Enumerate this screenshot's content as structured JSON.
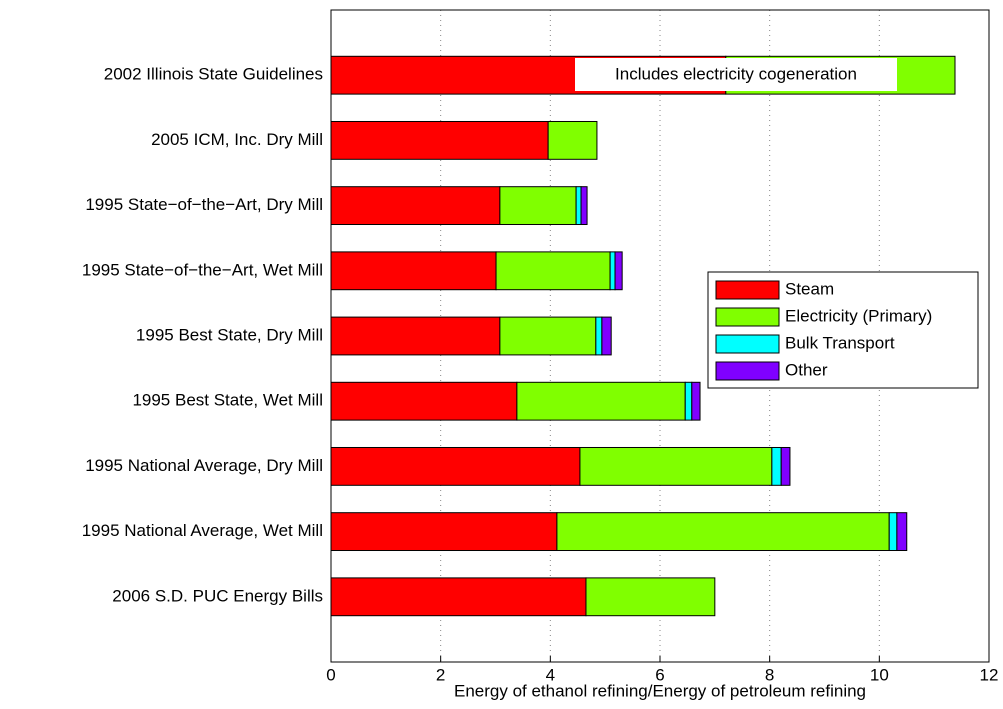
{
  "chart_data": {
    "type": "barh-stacked",
    "xlabel": "Energy of ethanol refining/Energy of petroleum refining",
    "categories": [
      "2002 Illinois State Guidelines",
      "2005 ICM, Inc. Dry Mill",
      "1995 State−of−the−Art, Dry Mill",
      "1995 State−of−the−Art, Wet Mill",
      "1995 Best State, Dry Mill",
      "1995 Best State, Wet Mill",
      "1995 National Average, Dry Mill",
      "1995 National Average, Wet Mill",
      "2006 S.D. PUC Energy Bills"
    ],
    "series": [
      {
        "name": "Steam",
        "color": "#ff0000",
        "values": [
          7.2,
          3.96,
          3.08,
          3.01,
          3.08,
          3.39,
          4.54,
          4.12,
          4.65
        ]
      },
      {
        "name": "Electricity (Primary)",
        "color": "#80ff00",
        "values": [
          4.18,
          0.89,
          1.39,
          2.08,
          1.75,
          3.07,
          3.5,
          6.06,
          2.35
        ]
      },
      {
        "name": "Bulk Transport",
        "color": "#00ffff",
        "values": [
          null,
          null,
          0.09,
          0.09,
          0.11,
          0.12,
          0.17,
          0.14,
          null
        ]
      },
      {
        "name": "Other",
        "color": "#8000ff",
        "values": [
          null,
          null,
          0.11,
          0.13,
          0.17,
          0.15,
          0.16,
          0.18,
          null
        ]
      }
    ],
    "annotation": "Includes electricity cogeneration",
    "xlim": [
      0,
      12
    ],
    "xticks": [
      0,
      2,
      4,
      6,
      8,
      10,
      12
    ],
    "grid": true,
    "legend": "right"
  }
}
